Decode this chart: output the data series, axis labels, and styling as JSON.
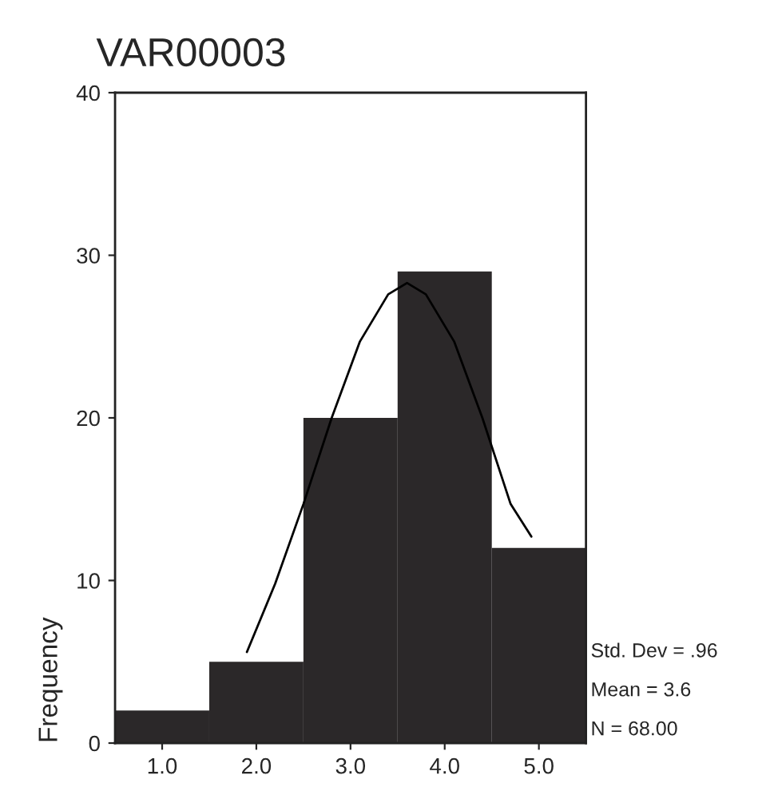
{
  "chart_data": {
    "type": "histogram",
    "title": "VAR00003",
    "ylabel": "Frequency",
    "bins": [
      0.5,
      1.5,
      2.5,
      3.5,
      4.5,
      5.5
    ],
    "values": [
      2,
      5,
      20,
      29,
      12
    ],
    "color": "#2b2829",
    "series": [
      {
        "type": "line",
        "color": "#000000",
        "x": [
          1.9,
          2.2,
          2.5,
          2.8,
          3.1,
          3.4,
          3.6,
          3.8,
          4.1,
          4.4,
          4.7,
          4.92
        ],
        "values": [
          5.6,
          9.8,
          14.7,
          20.0,
          24.7,
          27.6,
          28.3,
          27.6,
          24.7,
          20.0,
          14.7,
          12.7
        ]
      }
    ],
    "xlim": [
      0.5,
      5.5
    ],
    "xticks": [
      {
        "value": 1,
        "label": "1.0"
      },
      {
        "value": 2,
        "label": "2.0"
      },
      {
        "value": 3,
        "label": "3.0"
      },
      {
        "value": 4,
        "label": "4.0"
      },
      {
        "value": 5,
        "label": "5.0"
      }
    ],
    "ylim": [
      0,
      40
    ],
    "yticks": [
      0,
      10,
      20,
      30,
      40
    ],
    "grid": false,
    "annotations": [
      "Std. Dev = .96",
      "Mean = 3.6",
      "N = 68.00"
    ]
  }
}
